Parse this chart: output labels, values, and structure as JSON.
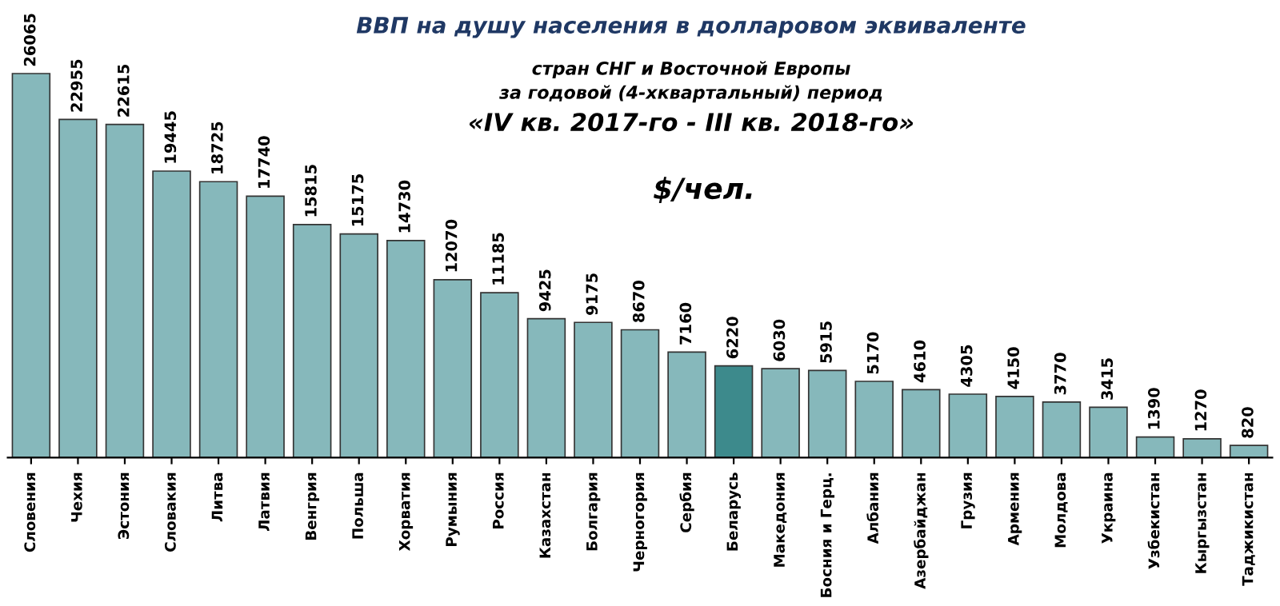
{
  "chart_data": {
    "type": "bar",
    "title": "ВВП на душу населения в долларовом эквиваленте",
    "subtitle": "стран СНГ и Восточной Европы\nза годовой (4-хквартальный) период",
    "annotations": [
      "«IV кв. 2017-го - III кв. 2018-го»",
      "$/чел."
    ],
    "categories": [
      "Словения",
      "Чехия",
      "Эстония",
      "Словакия",
      "Литва",
      "Латвия",
      "Венгрия",
      "Польша",
      "Хорватия",
      "Румыния",
      "Россия",
      "Казахстан",
      "Болгария",
      "Черногория",
      "Сербия",
      "Беларусь",
      "Македония",
      "Босния и Герц.",
      "Албания",
      "Азербайджан",
      "Грузия",
      "Армения",
      "Молдова",
      "Украина",
      "Узбекистан",
      "Кыргызстан",
      "Таджикистан"
    ],
    "values": [
      26065,
      22955,
      22615,
      19445,
      18725,
      17740,
      15815,
      15175,
      14730,
      12070,
      11185,
      9425,
      9175,
      8670,
      7160,
      6220,
      6030,
      5915,
      5170,
      4610,
      4305,
      4150,
      3770,
      3415,
      1390,
      1270,
      820
    ],
    "colors": [
      "#86b8bb",
      "#86b8bb",
      "#86b8bb",
      "#86b8bb",
      "#86b8bb",
      "#86b8bb",
      "#86b8bb",
      "#86b8bb",
      "#86b8bb",
      "#86b8bb",
      "#86b8bb",
      "#86b8bb",
      "#86b8bb",
      "#86b8bb",
      "#86b8bb",
      "#3d8a8c",
      "#86b8bb",
      "#86b8bb",
      "#86b8bb",
      "#86b8bb",
      "#86b8bb",
      "#86b8bb",
      "#86b8bb",
      "#86b8bb",
      "#86b8bb",
      "#86b8bb",
      "#86b8bb"
    ],
    "data_labels": true,
    "grid": false,
    "legend": false
  }
}
